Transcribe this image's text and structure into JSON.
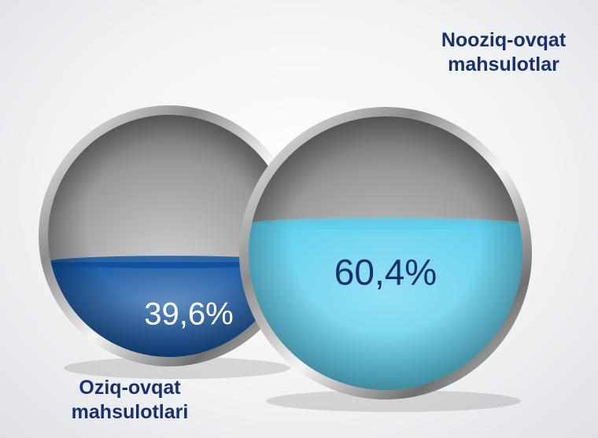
{
  "chart_data": {
    "type": "sphere",
    "categories": [
      "Oziq-ovqat mahsulotlari",
      "Nooziq-ovqat mahsulotlar"
    ],
    "values": [
      39.6,
      60.4
    ],
    "value_labels": [
      "39,6%",
      "60,4%"
    ],
    "colors": [
      "#0b4f9e",
      "#5ccfee"
    ],
    "ylim": [
      0,
      100
    ]
  }
}
